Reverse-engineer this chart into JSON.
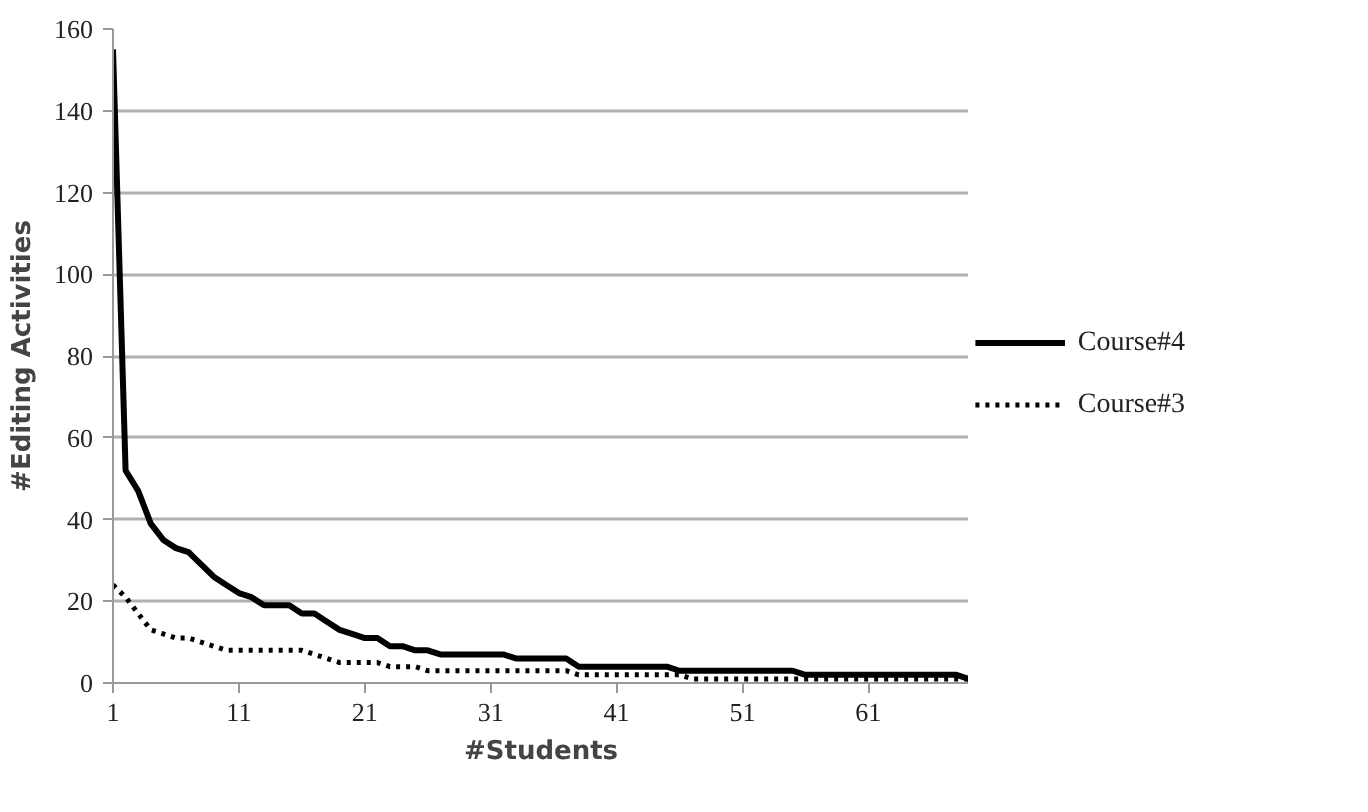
{
  "chart_data": {
    "type": "line",
    "xlabel": "#Students",
    "ylabel": "#Editing Activities",
    "x": [
      1,
      2,
      3,
      4,
      5,
      6,
      7,
      8,
      9,
      10,
      11,
      12,
      13,
      14,
      15,
      16,
      17,
      18,
      19,
      20,
      21,
      22,
      23,
      24,
      25,
      26,
      27,
      28,
      29,
      30,
      31,
      32,
      33,
      34,
      35,
      36,
      37,
      38,
      39,
      40,
      41,
      42,
      43,
      44,
      45,
      46,
      47,
      48,
      49,
      50,
      51,
      52,
      53,
      54,
      55,
      56,
      57,
      58,
      59,
      60,
      61,
      62,
      63,
      64,
      65,
      66,
      67,
      68,
      69
    ],
    "series": [
      {
        "name": "Course#4",
        "color": "#000000",
        "line_style": "solid",
        "values": [
          155,
          52,
          47,
          39,
          35,
          33,
          32,
          29,
          26,
          24,
          22,
          21,
          19,
          19,
          19,
          17,
          17,
          15,
          13,
          12,
          11,
          11,
          9,
          9,
          8,
          8,
          7,
          7,
          7,
          7,
          7,
          7,
          6,
          6,
          6,
          6,
          6,
          4,
          4,
          4,
          4,
          4,
          4,
          4,
          4,
          3,
          3,
          3,
          3,
          3,
          3,
          3,
          3,
          3,
          3,
          2,
          2,
          2,
          2,
          2,
          2,
          2,
          2,
          2,
          2,
          2,
          2,
          2,
          1
        ]
      },
      {
        "name": "Course#3",
        "color": "#000000",
        "line_style": "dotted",
        "values": [
          24,
          21,
          17,
          13,
          12,
          11,
          11,
          10,
          9,
          8,
          8,
          8,
          8,
          8,
          8,
          8,
          7,
          6,
          5,
          5,
          5,
          5,
          4,
          4,
          4,
          3,
          3,
          3,
          3,
          3,
          3,
          3,
          3,
          3,
          3,
          3,
          3,
          2,
          2,
          2,
          2,
          2,
          2,
          2,
          2,
          2,
          1,
          1,
          1,
          1,
          1,
          1,
          1,
          1,
          1,
          1,
          1,
          1,
          1,
          1,
          1,
          1,
          1,
          1,
          1,
          1,
          1,
          1,
          1
        ]
      }
    ],
    "xlim": [
      1,
      69
    ],
    "xticks": [
      1,
      11,
      21,
      31,
      41,
      51,
      61
    ],
    "ylim": [
      0,
      160
    ],
    "yticks": [
      0,
      20,
      40,
      60,
      80,
      100,
      120,
      140,
      160
    ],
    "grid": "y",
    "legend": "right"
  }
}
